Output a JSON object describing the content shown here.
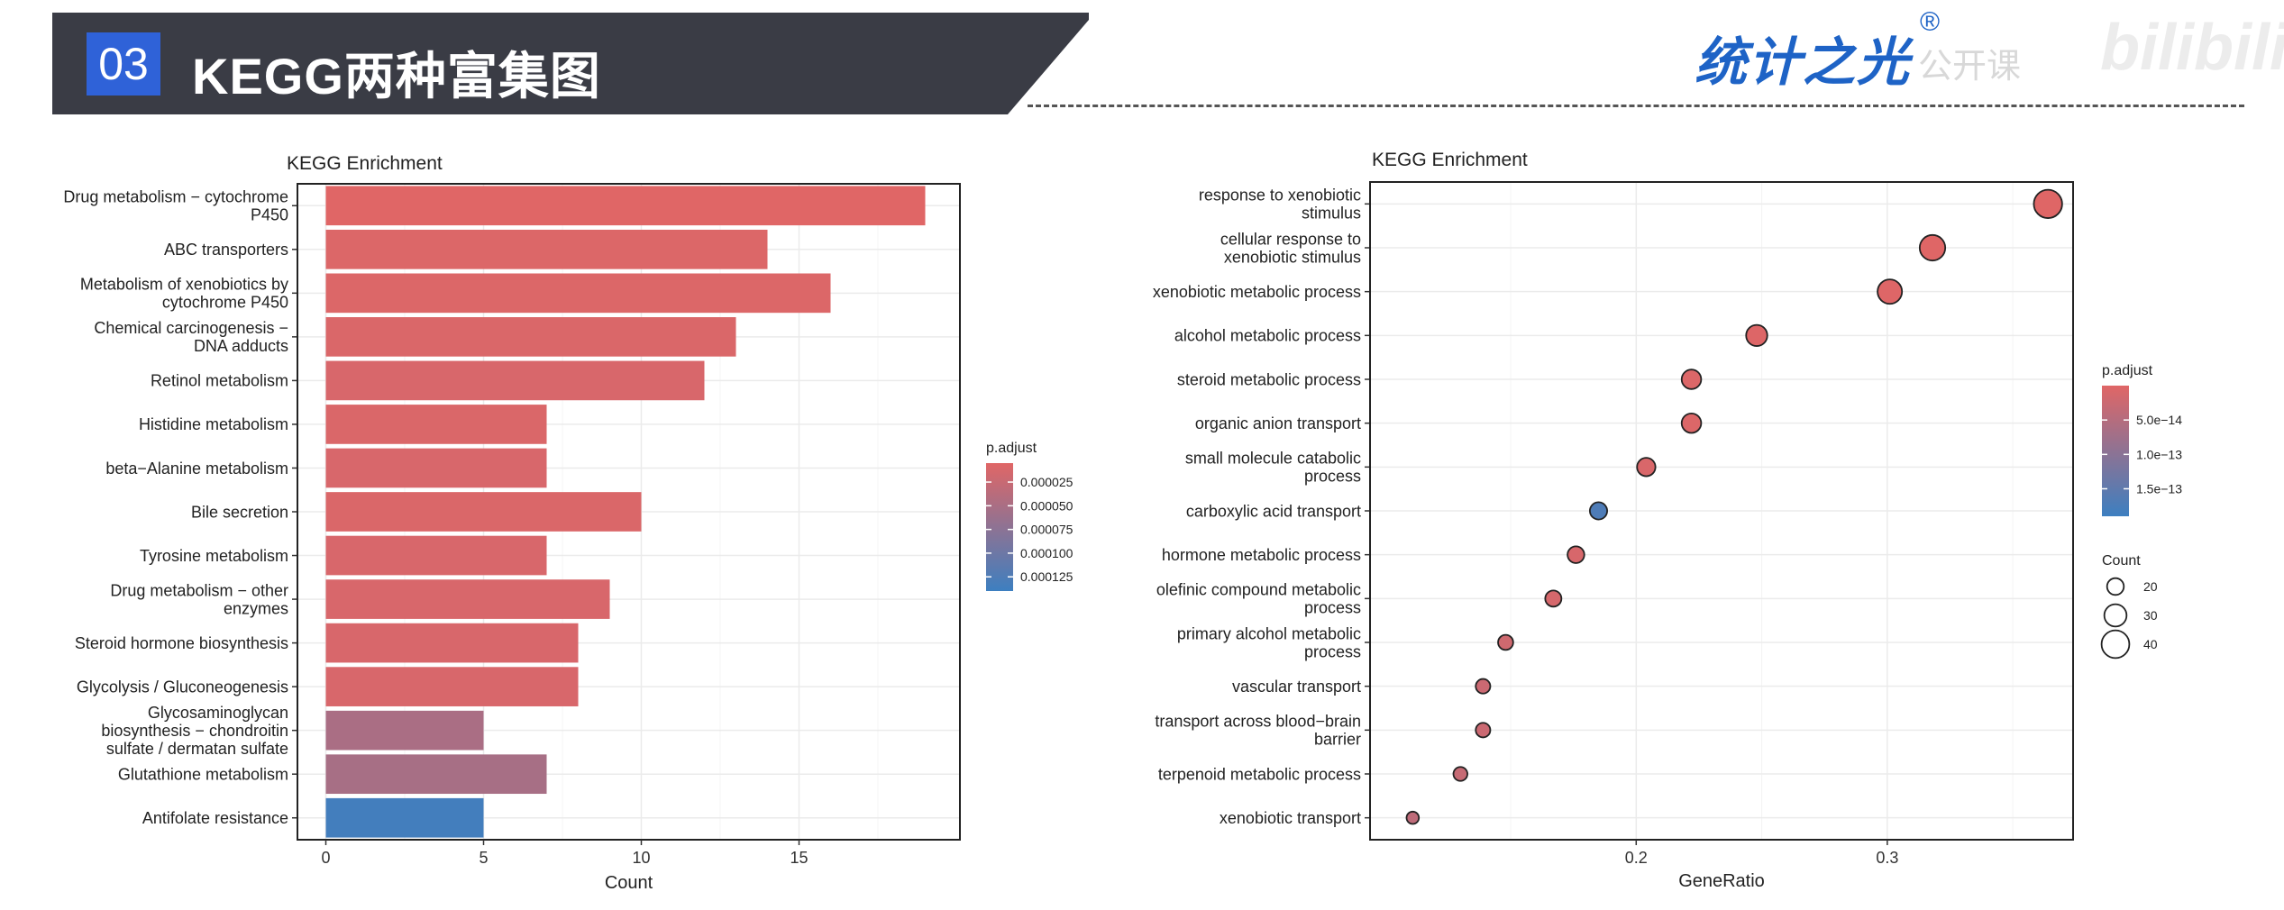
{
  "header": {
    "section_number": "03",
    "title": "KEGG两种富集图",
    "logo_text": "统计之光",
    "logo_mark": "®",
    "logo_subtext": "公开课",
    "watermark": "bilibili"
  },
  "chart_data": [
    {
      "type": "bar",
      "orientation": "horizontal",
      "title": "KEGG Enrichment",
      "xlabel": "Count",
      "ylabel": "",
      "xlim": [
        -0.9,
        20.1
      ],
      "xticks": [
        0,
        5,
        10,
        15
      ],
      "grid": true,
      "legend_placement": "right",
      "categories": [
        [
          "Drug metabolism − cytochrome",
          "P450"
        ],
        [
          "ABC transporters"
        ],
        [
          "Metabolism of xenobiotics by",
          "cytochrome P450"
        ],
        [
          "Chemical carcinogenesis −",
          "DNA adducts"
        ],
        [
          "Retinol metabolism"
        ],
        [
          "Histidine metabolism"
        ],
        [
          "beta−Alanine metabolism"
        ],
        [
          "Bile secretion"
        ],
        [
          "Tyrosine metabolism"
        ],
        [
          "Drug metabolism − other",
          "enzymes"
        ],
        [
          "Steroid hormone biosynthesis"
        ],
        [
          "Glycolysis / Gluconeogenesis"
        ],
        [
          "Glycosaminoglycan",
          "biosynthesis − chondroitin",
          "sulfate / dermatan sulfate"
        ],
        [
          "Glutathione metabolism"
        ],
        [
          "Antifolate resistance"
        ]
      ],
      "values": [
        19,
        14,
        16,
        13,
        12,
        7,
        7,
        10,
        7,
        9,
        8,
        8,
        5,
        7,
        5
      ],
      "p_adjust": [
        5e-06,
        8e-06,
        8e-06,
        1e-05,
        1.2e-05,
        1e-05,
        1.2e-05,
        1e-05,
        1.2e-05,
        1.2e-05,
        1.2e-05,
        1.2e-05,
        5e-05,
        5.2e-05,
        0.000135
      ],
      "color_legend": {
        "title": "p.adjust",
        "labels": [
          "0.000025",
          "0.000050",
          "0.000075",
          "0.000100",
          "0.000125"
        ],
        "range": [
          5e-06,
          0.00014
        ],
        "low_color": "#e06666",
        "high_color": "#3d7fc0"
      }
    },
    {
      "type": "scatter",
      "title": "KEGG Enrichment",
      "xlabel": "GeneRatio",
      "ylabel": "",
      "xlim": [
        0.094,
        0.374
      ],
      "xticks": [
        0.2,
        0.3
      ],
      "grid": true,
      "legend_placement": "right",
      "categories": [
        [
          "response to xenobiotic",
          "stimulus"
        ],
        [
          "cellular response to",
          "xenobiotic stimulus"
        ],
        [
          "xenobiotic metabolic process"
        ],
        [
          "alcohol metabolic process"
        ],
        [
          "steroid metabolic process"
        ],
        [
          "organic anion transport"
        ],
        [
          "small molecule catabolic",
          "process"
        ],
        [
          "carboxylic acid transport"
        ],
        [
          "hormone metabolic process"
        ],
        [
          "olefinic compound metabolic",
          "process"
        ],
        [
          "primary alcohol metabolic",
          "process"
        ],
        [
          "vascular transport"
        ],
        [
          "transport across blood−brain",
          "barrier"
        ],
        [
          "terpenoid metabolic process"
        ],
        [
          "xenobiotic transport"
        ]
      ],
      "x": [
        0.364,
        0.318,
        0.301,
        0.248,
        0.222,
        0.222,
        0.204,
        0.185,
        0.176,
        0.167,
        0.148,
        0.139,
        0.139,
        0.13,
        0.111
      ],
      "count": [
        41,
        36,
        34,
        28,
        25,
        25,
        23,
        21,
        20,
        19,
        17,
        16,
        16,
        15,
        12
      ],
      "p_adjust": [
        1e-15,
        1e-15,
        2e-15,
        3e-15,
        5e-15,
        5e-15,
        8e-15,
        1.7e-13,
        1e-14,
        1.2e-14,
        2e-14,
        2.5e-14,
        2.5e-14,
        3e-14,
        4e-14
      ],
      "color_legend": {
        "title": "p.adjust",
        "labels": [
          "5.0e−14",
          "1.0e−13",
          "1.5e−13"
        ],
        "range": [
          0,
          1.9e-13
        ],
        "low_color": "#e06666",
        "high_color": "#3d7fc0"
      },
      "size_legend": {
        "title": "Count",
        "values": [
          20,
          30,
          40
        ]
      }
    }
  ]
}
